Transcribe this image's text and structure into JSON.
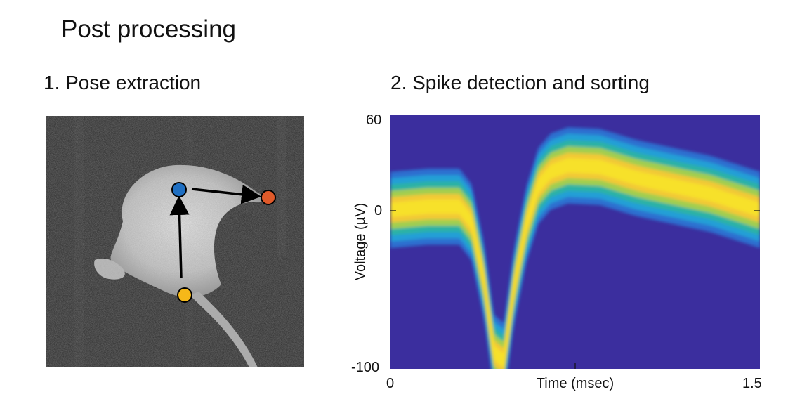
{
  "page_title": "Post processing",
  "panels": {
    "pose": {
      "title": "1. Pose extraction",
      "keypoints": [
        {
          "name": "head",
          "color": "#1f6fc2"
        },
        {
          "name": "snout",
          "color": "#e05a2a"
        },
        {
          "name": "tail-base",
          "color": "#f6b819"
        }
      ]
    },
    "spike": {
      "title": "2. Spike detection and sorting"
    }
  },
  "chart_data": {
    "type": "heatmap",
    "title": "2. Spike detection and sorting",
    "xlabel": "Time (msec)",
    "ylabel": "Voltage (µV)",
    "xlim": [
      0,
      1.5
    ],
    "ylim": [
      -100,
      60
    ],
    "x_ticks": [
      "0",
      "1.5"
    ],
    "y_ticks": [
      "60",
      "0",
      "-100"
    ],
    "waveform_mean": {
      "x": [
        0,
        0.15,
        0.28,
        0.33,
        0.38,
        0.42,
        0.46,
        0.5,
        0.55,
        0.6,
        0.65,
        0.72,
        0.85,
        1.0,
        1.15,
        1.3,
        1.5
      ],
      "y": [
        0,
        2,
        2,
        -8,
        -45,
        -90,
        -95,
        -50,
        -10,
        15,
        24,
        28,
        27,
        20,
        15,
        10,
        0
      ]
    },
    "colors": {
      "background": "#3b2e9e",
      "high": "#f7e12b",
      "mid": "#2cb5a0",
      "low": "#2a85e0"
    }
  }
}
